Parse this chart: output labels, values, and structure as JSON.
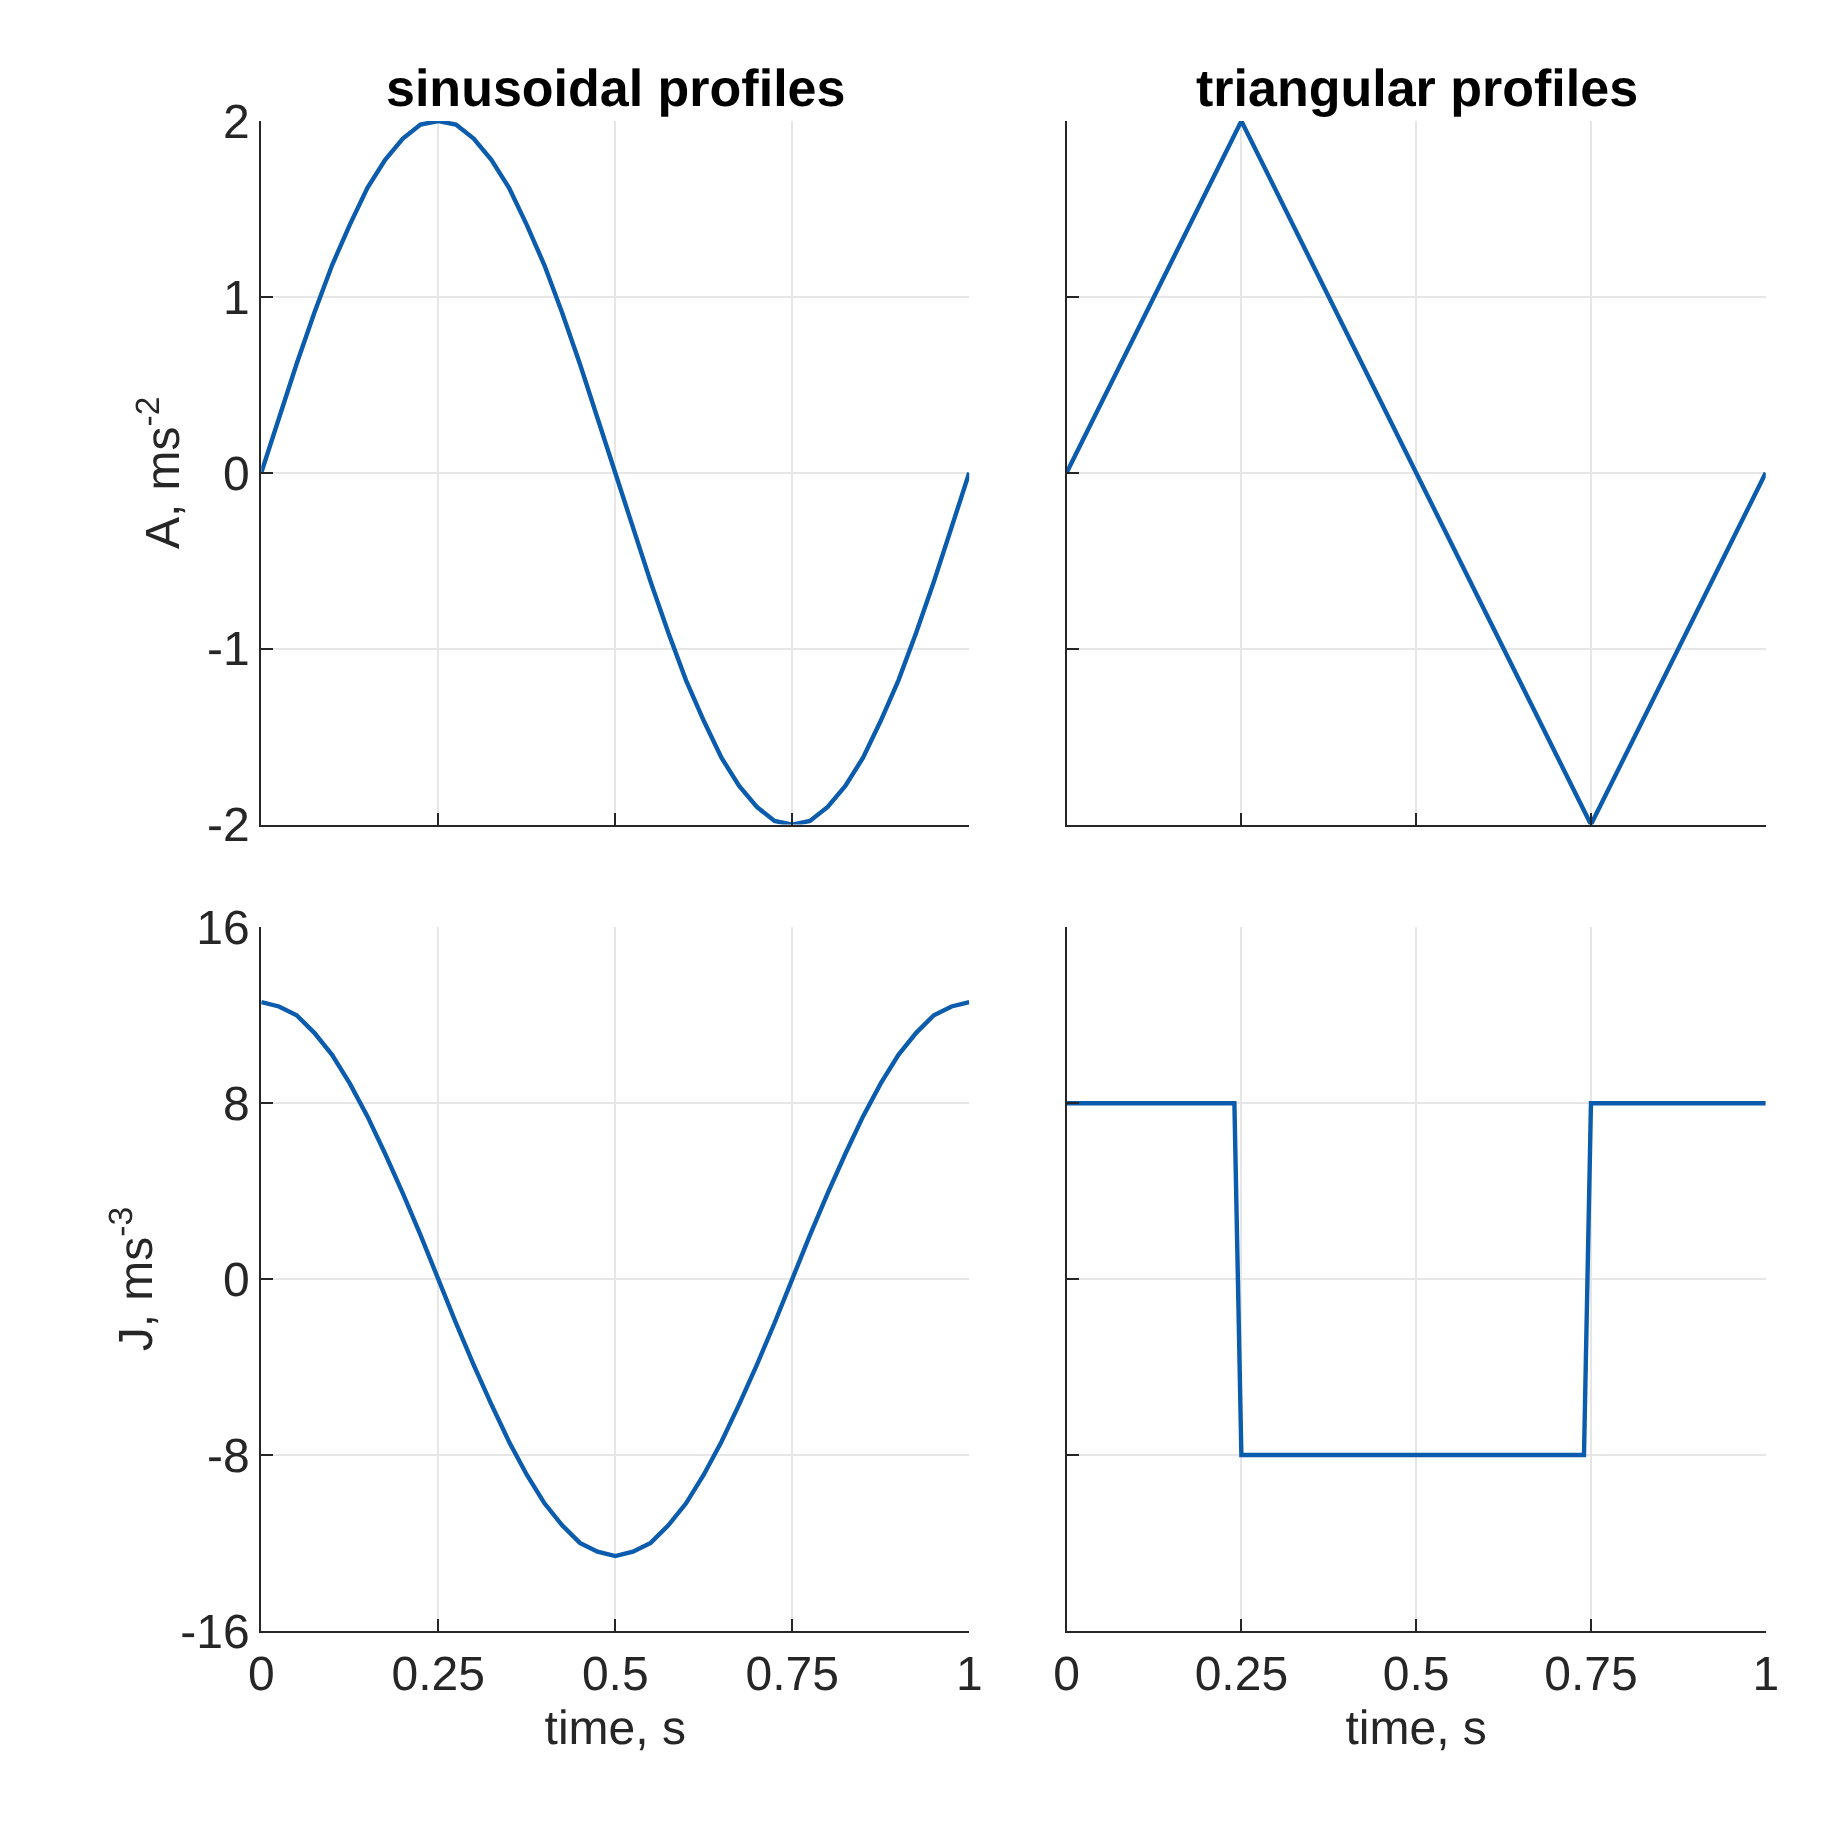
{
  "chart_data": [
    {
      "type": "line",
      "title": "sinusoidal profiles",
      "ylabel": "A, ms$^{-2}$",
      "x": [
        0,
        0.025,
        0.05,
        0.075,
        0.1,
        0.125,
        0.15,
        0.175,
        0.2,
        0.225,
        0.25,
        0.275,
        0.3,
        0.325,
        0.35,
        0.375,
        0.4,
        0.425,
        0.45,
        0.475,
        0.5,
        0.525,
        0.55,
        0.575,
        0.6,
        0.625,
        0.65,
        0.675,
        0.7,
        0.725,
        0.75,
        0.775,
        0.8,
        0.825,
        0.85,
        0.875,
        0.9,
        0.925,
        0.95,
        0.975,
        1
      ],
      "series": [
        {
          "color": "#0b5cad",
          "values": [
            0,
            0.31,
            0.62,
            0.91,
            1.18,
            1.41,
            1.62,
            1.78,
            1.9,
            1.98,
            2,
            1.98,
            1.9,
            1.78,
            1.62,
            1.41,
            1.18,
            0.91,
            0.62,
            0.31,
            0,
            -0.31,
            -0.62,
            -0.91,
            -1.18,
            -1.41,
            -1.62,
            -1.78,
            -1.9,
            -1.98,
            -2,
            -1.98,
            -1.9,
            -1.78,
            -1.62,
            -1.41,
            -1.18,
            -0.91,
            -0.62,
            -0.31,
            0
          ]
        }
      ],
      "xlim": [
        0,
        1
      ],
      "ylim": [
        -2,
        2
      ],
      "xticks": [
        0,
        0.25,
        0.5,
        0.75,
        1
      ],
      "yticks": [
        -2,
        -1,
        0,
        1,
        2
      ],
      "grid": true,
      "tick_labels": "y"
    },
    {
      "type": "line",
      "title": "triangular profiles",
      "x": [
        0,
        0.25,
        0.75,
        1
      ],
      "series": [
        {
          "color": "#0b5cad",
          "values": [
            0,
            2,
            -2,
            0
          ]
        }
      ],
      "xlim": [
        0,
        1
      ],
      "ylim": [
        -2,
        2
      ],
      "xticks": [
        0,
        0.25,
        0.5,
        0.75,
        1
      ],
      "yticks": [
        -2,
        -1,
        0,
        1,
        2
      ],
      "grid": true,
      "tick_labels": false
    },
    {
      "type": "line",
      "ylabel": "J, ms$^{-3}$",
      "xlabel": "time, s",
      "x": [
        0,
        0.025,
        0.05,
        0.075,
        0.1,
        0.125,
        0.15,
        0.175,
        0.2,
        0.225,
        0.25,
        0.275,
        0.3,
        0.325,
        0.35,
        0.375,
        0.4,
        0.425,
        0.45,
        0.475,
        0.5,
        0.525,
        0.55,
        0.575,
        0.6,
        0.625,
        0.65,
        0.675,
        0.7,
        0.725,
        0.75,
        0.775,
        0.8,
        0.825,
        0.85,
        0.875,
        0.9,
        0.925,
        0.95,
        0.975,
        1
      ],
      "series": [
        {
          "color": "#0b5cad",
          "values": [
            12.6,
            12.4,
            12,
            11.2,
            10.2,
            8.9,
            7.4,
            5.7,
            3.9,
            2,
            0,
            -2,
            -3.9,
            -5.7,
            -7.4,
            -8.9,
            -10.2,
            -11.2,
            -12,
            -12.4,
            -12.6,
            -12.4,
            -12,
            -11.2,
            -10.2,
            -8.9,
            -7.4,
            -5.7,
            -3.9,
            -2,
            0,
            2,
            3.9,
            5.7,
            7.4,
            8.9,
            10.2,
            11.2,
            12,
            12.4,
            12.6
          ]
        }
      ],
      "xlim": [
        0,
        1
      ],
      "ylim": [
        -16,
        16
      ],
      "xticks": [
        0,
        0.25,
        0.5,
        0.75,
        1
      ],
      "yticks": [
        -16,
        -8,
        0,
        8,
        16
      ],
      "grid": true
    },
    {
      "type": "line",
      "xlabel": "time, s",
      "x": [
        0,
        0.24,
        0.25,
        0.74,
        0.75,
        1
      ],
      "series": [
        {
          "color": "#0b5cad",
          "values": [
            8,
            8,
            -8,
            -8,
            8,
            8
          ]
        }
      ],
      "xlim": [
        0,
        1
      ],
      "ylim": [
        -16,
        16
      ],
      "xticks": [
        0,
        0.25,
        0.5,
        0.75,
        1
      ],
      "yticks": [
        -16,
        -8,
        0,
        8,
        16
      ],
      "grid": true,
      "tick_labels": "x"
    }
  ]
}
